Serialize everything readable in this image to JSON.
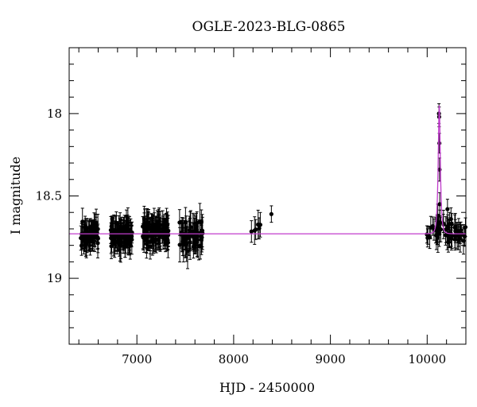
{
  "chart_data": {
    "type": "scatter",
    "title": "OGLE-2023-BLG-0865",
    "xlabel": "HJD - 2450000",
    "ylabel": "I magnitude",
    "xlim": [
      6300,
      10400
    ],
    "ylim": [
      19.4,
      17.6
    ],
    "y_inverted": true,
    "x_ticks": [
      "7000",
      "8000",
      "9000",
      "10000"
    ],
    "y_ticks": [
      "18",
      "18.5",
      "19"
    ],
    "x_tick_values": [
      7000,
      8000,
      9000,
      10000
    ],
    "y_tick_values": [
      18.0,
      18.5,
      19.0
    ],
    "x_minor_step": 200,
    "y_minor_step": 0.1,
    "grid": false,
    "colors": {
      "points": "#000000",
      "model": "#c03ccc"
    },
    "baseline_mag": 18.73,
    "model_peak": {
      "t0": 10125,
      "mag": 17.95,
      "tE": 18
    },
    "seasons": [
      {
        "start": 6420,
        "end": 6600,
        "n": 70,
        "mean": 18.73,
        "scatter": 0.06,
        "err": 0.07
      },
      {
        "start": 6730,
        "end": 6950,
        "n": 90,
        "mean": 18.74,
        "scatter": 0.06,
        "err": 0.08
      },
      {
        "start": 7060,
        "end": 7330,
        "n": 110,
        "mean": 18.72,
        "scatter": 0.06,
        "err": 0.08
      },
      {
        "start": 7440,
        "end": 7680,
        "n": 60,
        "mean": 18.74,
        "scatter": 0.07,
        "err": 0.09
      },
      {
        "start": 8180,
        "end": 8280,
        "n": 6,
        "mean": 18.72,
        "scatter": 0.04,
        "err": 0.07
      },
      {
        "start": 9990,
        "end": 10400,
        "n": 55,
        "mean": 18.72,
        "scatter": 0.06,
        "err": 0.07
      }
    ],
    "special_points": [
      {
        "x": 8390,
        "y": 18.61,
        "err": 0.05
      },
      {
        "x": 10122,
        "y": 18.0,
        "err": 0.06
      },
      {
        "x": 10124,
        "y": 18.02,
        "err": 0.06
      },
      {
        "x": 10126,
        "y": 18.18,
        "err": 0.06
      },
      {
        "x": 10128,
        "y": 18.34,
        "err": 0.07
      },
      {
        "x": 10130,
        "y": 18.55,
        "err": 0.07
      },
      {
        "x": 10110,
        "y": 18.62,
        "err": 0.07
      },
      {
        "x": 10210,
        "y": 18.58,
        "err": 0.06
      }
    ]
  }
}
